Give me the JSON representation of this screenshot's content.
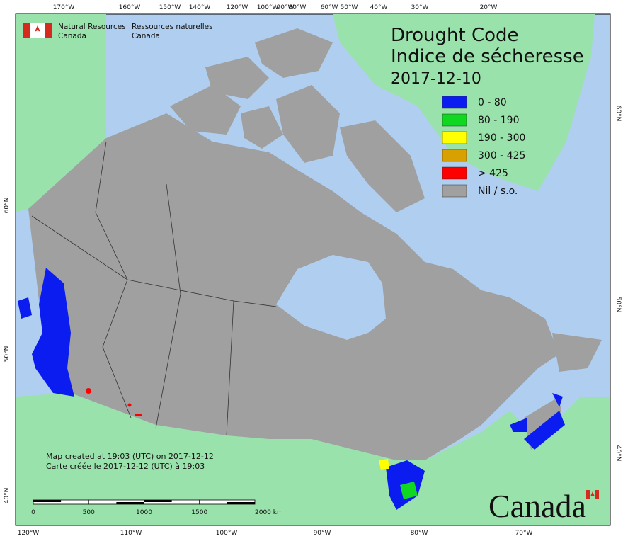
{
  "header": {
    "agency_en": [
      "Natural Resources",
      "Canada"
    ],
    "agency_fr": [
      "Ressources naturelles",
      "Canada"
    ]
  },
  "title": "Drought Code",
  "subtitle": "Indice de sécheresse",
  "date": "2017-12-10",
  "legend": [
    {
      "label": "0 - 80",
      "color": "#0a1cf0"
    },
    {
      "label": "80 - 190",
      "color": "#10d820"
    },
    {
      "label": "190 - 300",
      "color": "#ffff00"
    },
    {
      "label": "300 - 425",
      "color": "#d8a000"
    },
    {
      "label": "> 425",
      "color": "#ff0000"
    },
    {
      "label": "Nil / s.o.",
      "color": "#a0a0a0"
    }
  ],
  "top_labels": [
    "170°W",
    "160°W",
    "150°W",
    "140°W",
    "120°W",
    "100°W",
    "90°W",
    "80°W",
    "60°W",
    "50°W",
    "40°W",
    "30°W",
    "20°W"
  ],
  "bottom_labels": [
    "120°W",
    "110°W",
    "100°W",
    "90°W",
    "80°W",
    "70°W"
  ],
  "left_labels": [
    "60°N",
    "50°N",
    "40°N"
  ],
  "right_labels": [
    "60°N",
    "50°N",
    "40°N"
  ],
  "notes": [
    "Map created at 19:03 (UTC) on 2017-12-12",
    "Carte créée le 2017-12-12 (UTC) à 19:03"
  ],
  "scale_labels": [
    "0",
    "500",
    "1000",
    "1500",
    "2000 km"
  ],
  "wordmark": "Canada"
}
